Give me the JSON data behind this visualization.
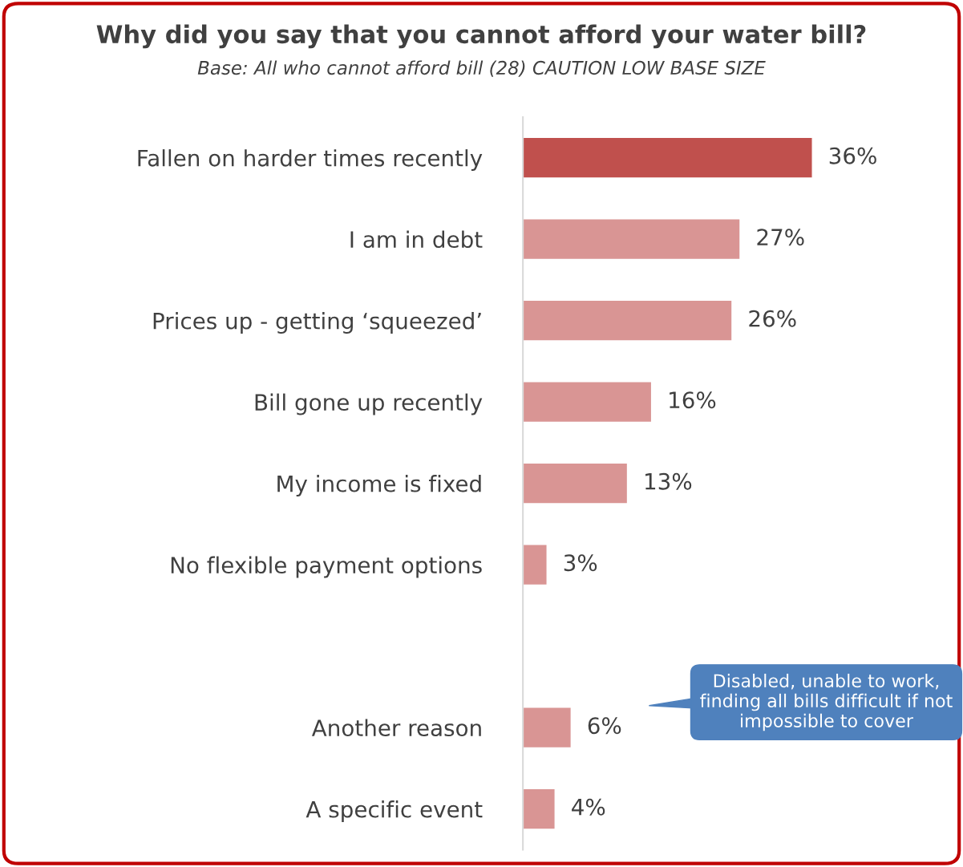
{
  "chart_data": {
    "type": "bar",
    "orientation": "horizontal",
    "title": "Why did you say that you cannot afford your water bill?",
    "subtitle": "Base: All who cannot afford bill (28) CAUTION LOW BASE SIZE",
    "categories": [
      "Fallen on harder times recently",
      "I am in debt",
      "Prices up - getting ‘squeezed’",
      "Bill gone up recently",
      "My income is fixed",
      "No flexible payment options",
      null,
      "Another reason",
      "A specific event"
    ],
    "values": [
      36,
      27,
      26,
      16,
      13,
      3,
      null,
      6,
      4
    ],
    "value_labels": [
      "36%",
      "27%",
      "26%",
      "16%",
      "13%",
      "3%",
      null,
      "6%",
      "4%"
    ],
    "colors": [
      "#c0504d",
      "#d99594",
      "#d99594",
      "#d99594",
      "#d99594",
      "#d99594",
      "#d99594",
      "#d99594",
      "#d99594"
    ],
    "annotations": [
      "Disabled, unable to work, finding all bills difficult if not impossible to cover"
    ],
    "grid": false,
    "legend": false
  }
}
